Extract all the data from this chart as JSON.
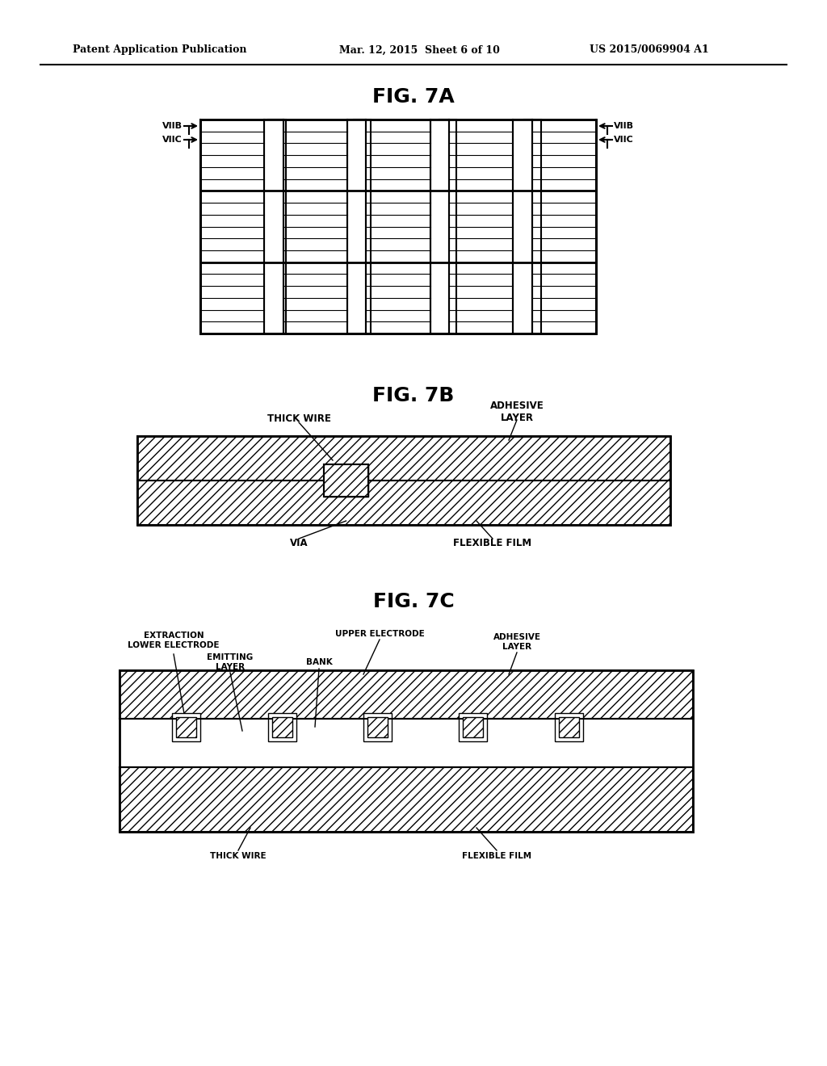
{
  "bg_color": "#ffffff",
  "line_color": "#000000",
  "header_left": "Patent Application Publication",
  "header_mid": "Mar. 12, 2015  Sheet 6 of 10",
  "header_right": "US 2015/0069904 A1",
  "fig7a_title": "FIG. 7A",
  "fig7b_title": "FIG. 7B",
  "fig7c_title": "FIG. 7C",
  "fig7b_labels": {
    "thick_wire": "THICK WIRE",
    "adhesive_layer": "ADHESIVE\nLAYER",
    "via": "VIA",
    "flexible_film": "FLEXIBLE FILM"
  },
  "fig7c_labels": {
    "extraction_lower_electrode": "EXTRACTION\nLOWER ELECTRODE",
    "upper_electrode": "UPPER ELECTRODE",
    "emitting_layer": "EMITTING\nLAYER",
    "bank": "BANK",
    "adhesive_layer": "ADHESIVE\nLAYER",
    "thick_wire": "THICK WIRE",
    "flexible_film": "FLEXIBLE FILM"
  }
}
